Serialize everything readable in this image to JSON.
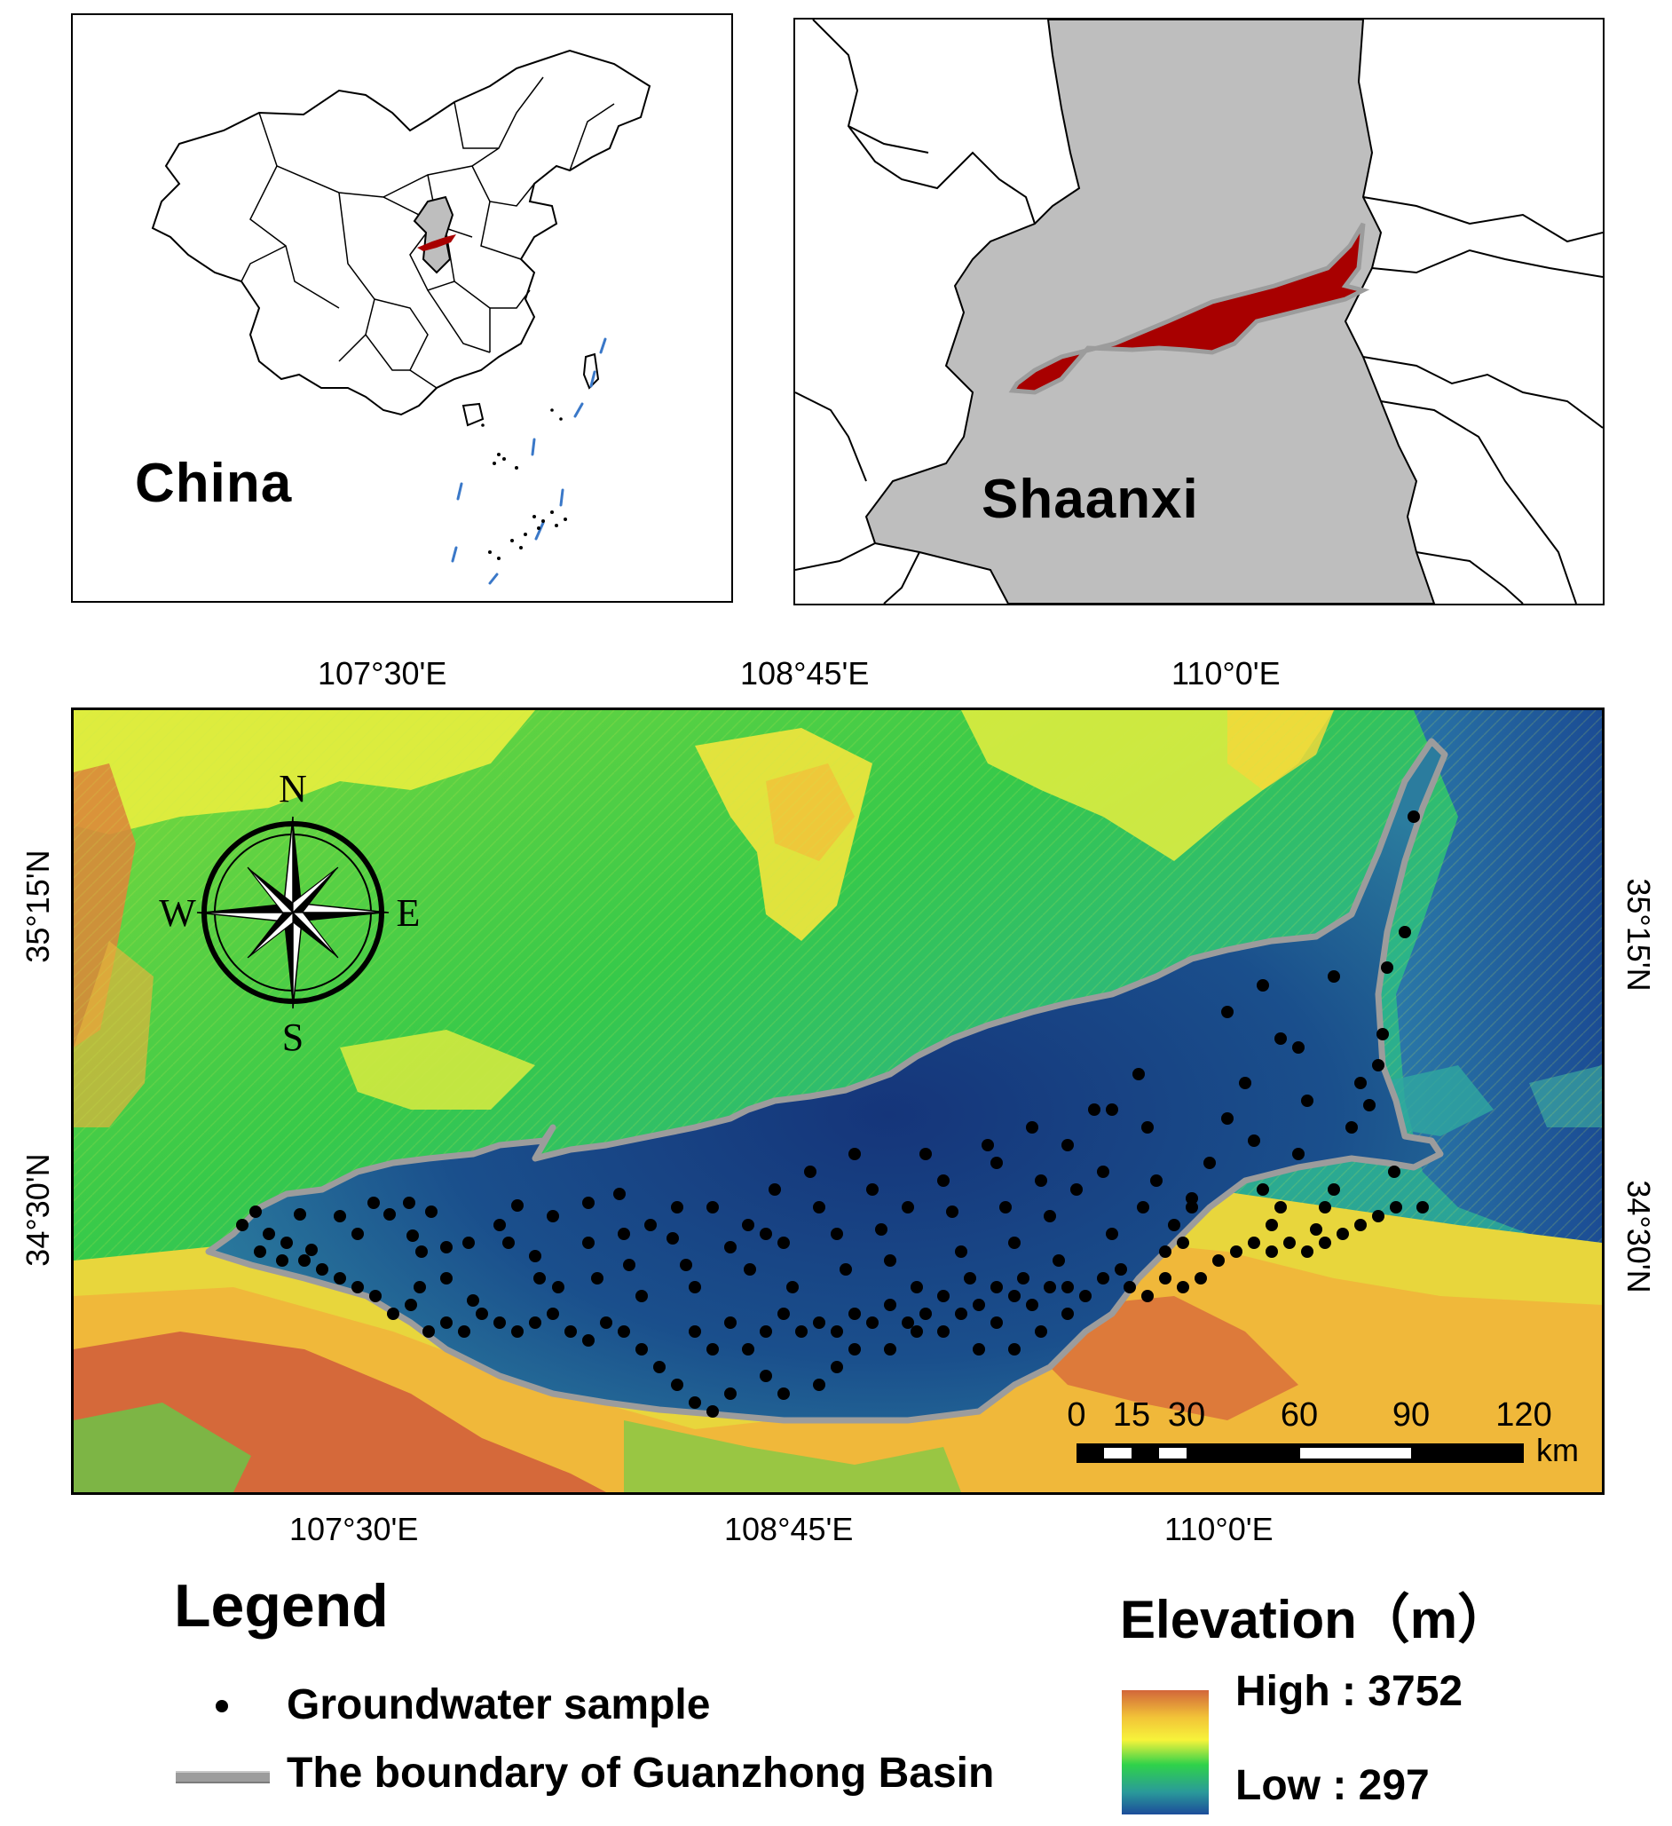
{
  "inset_china": {
    "label": "China"
  },
  "inset_shaanxi": {
    "label": "Shaanxi"
  },
  "main_map": {
    "top_lon_labels": [
      "107°30'E",
      "108°45'E",
      "110°0'E"
    ],
    "bottom_lon_labels": [
      "107°30'E",
      "108°45'E",
      "110°0'E"
    ],
    "left_lat_labels": [
      "35°15'N",
      "34°30'N"
    ],
    "right_lat_labels": [
      "35°15'N",
      "34°30'N"
    ],
    "compass": {
      "north": "N",
      "south": "S",
      "east": "E",
      "west": "W"
    },
    "scale_bar": {
      "ticks": [
        "0",
        "15",
        "30",
        "60",
        "90",
        "120"
      ],
      "unit": "km"
    }
  },
  "legend": {
    "title": "Legend",
    "items": [
      {
        "symbol": "dot",
        "label": "Groundwater sample"
      },
      {
        "symbol": "boundary-line",
        "label": "The boundary of Guanzhong Basin"
      }
    ]
  },
  "elevation_legend": {
    "title": "Elevation（m）",
    "high": "High : 3752",
    "low": "Low : 297",
    "colors": [
      "#d2663a",
      "#f2c438",
      "#f7f33a",
      "#2fd24a",
      "#2a9a9a",
      "#1c4c9a"
    ]
  },
  "colors": {
    "basin_fill": "#a80000",
    "province_fill": "#bebebe",
    "boundary_line": "#9c9c9c",
    "nine_dash": "#3a78c8"
  }
}
